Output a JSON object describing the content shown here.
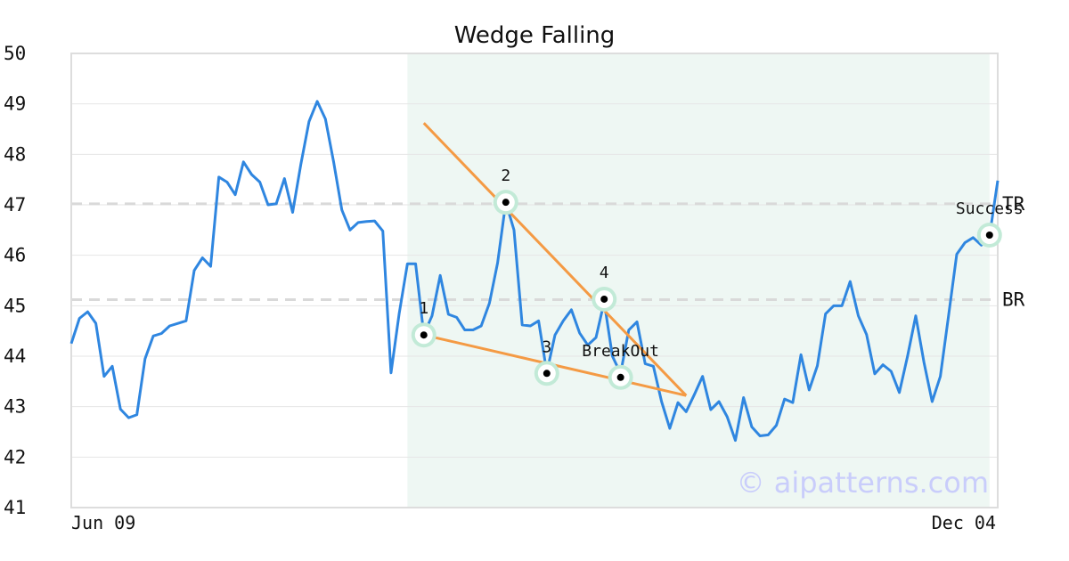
{
  "chart_data": {
    "type": "line",
    "title": "Wedge Falling",
    "xlabel": "",
    "ylabel": "",
    "ylim": [
      41,
      50
    ],
    "grid": true,
    "x_tick_labels": [
      "Jun 09",
      "Dec 04"
    ],
    "y_ticks": [
      41,
      42,
      43,
      44,
      45,
      46,
      47,
      48,
      49,
      50
    ],
    "series": [
      {
        "color": "#2f86e0",
        "values": [
          44.25,
          44.75,
          44.88,
          44.65,
          43.6,
          43.8,
          42.95,
          42.78,
          42.84,
          43.95,
          44.4,
          44.45,
          44.6,
          44.65,
          44.7,
          45.7,
          45.95,
          45.78,
          47.55,
          47.45,
          47.2,
          47.85,
          47.6,
          47.45,
          47.0,
          47.02,
          47.52,
          46.85,
          47.8,
          48.65,
          49.05,
          48.7,
          47.85,
          46.9,
          46.5,
          46.65,
          46.67,
          46.68,
          46.48,
          43.67,
          44.85,
          45.83,
          45.83,
          44.43,
          44.8,
          45.6,
          44.83,
          44.77,
          44.52,
          44.52,
          44.6,
          45.05,
          45.85,
          47.05,
          46.5,
          44.62,
          44.6,
          44.7,
          43.68,
          44.42,
          44.7,
          44.92,
          44.46,
          44.22,
          44.37,
          45.08,
          44.0,
          43.66,
          44.52,
          44.68,
          43.85,
          43.8,
          43.1,
          42.57,
          43.08,
          42.9,
          43.24,
          43.6,
          42.94,
          43.1,
          42.8,
          42.33,
          43.18,
          42.6,
          42.42,
          42.44,
          42.63,
          43.15,
          43.08,
          44.03,
          43.33,
          43.81,
          44.84,
          45.0,
          45.0,
          45.48,
          44.8,
          44.43,
          43.65,
          43.83,
          43.7,
          43.28,
          44.0,
          44.8,
          43.88,
          43.1,
          43.6,
          44.8,
          46.02,
          46.25,
          46.35,
          46.2,
          46.38,
          47.48
        ]
      }
    ],
    "pattern_region": {
      "from_index": 41,
      "to_index": 112,
      "color": "#eef7f3"
    },
    "reference_lines": [
      {
        "label": "TR",
        "value": 47.02
      },
      {
        "label": "BR",
        "value": 45.12
      }
    ],
    "trendlines": [
      {
        "color": "#f49a44",
        "from": {
          "index": 43,
          "value": 48.62
        },
        "to": {
          "index": 75,
          "value": 43.22
        }
      },
      {
        "color": "#f49a44",
        "from": {
          "index": 43,
          "value": 44.42
        },
        "to": {
          "index": 75,
          "value": 43.22
        }
      }
    ],
    "pattern_points": [
      {
        "label": "1",
        "index": 43,
        "value": 44.42,
        "label_pos": "above"
      },
      {
        "label": "2",
        "index": 53,
        "value": 47.05,
        "label_pos": "above"
      },
      {
        "label": "3",
        "index": 58,
        "value": 43.66,
        "label_pos": "above"
      },
      {
        "label": "4",
        "index": 65,
        "value": 45.13,
        "label_pos": "above"
      },
      {
        "label": "BreakOut",
        "index": 67,
        "value": 43.58,
        "label_pos": "above"
      },
      {
        "label": "Success",
        "index": 112,
        "value": 46.4,
        "label_pos": "above"
      }
    ],
    "watermark": "© aipatterns.com"
  }
}
